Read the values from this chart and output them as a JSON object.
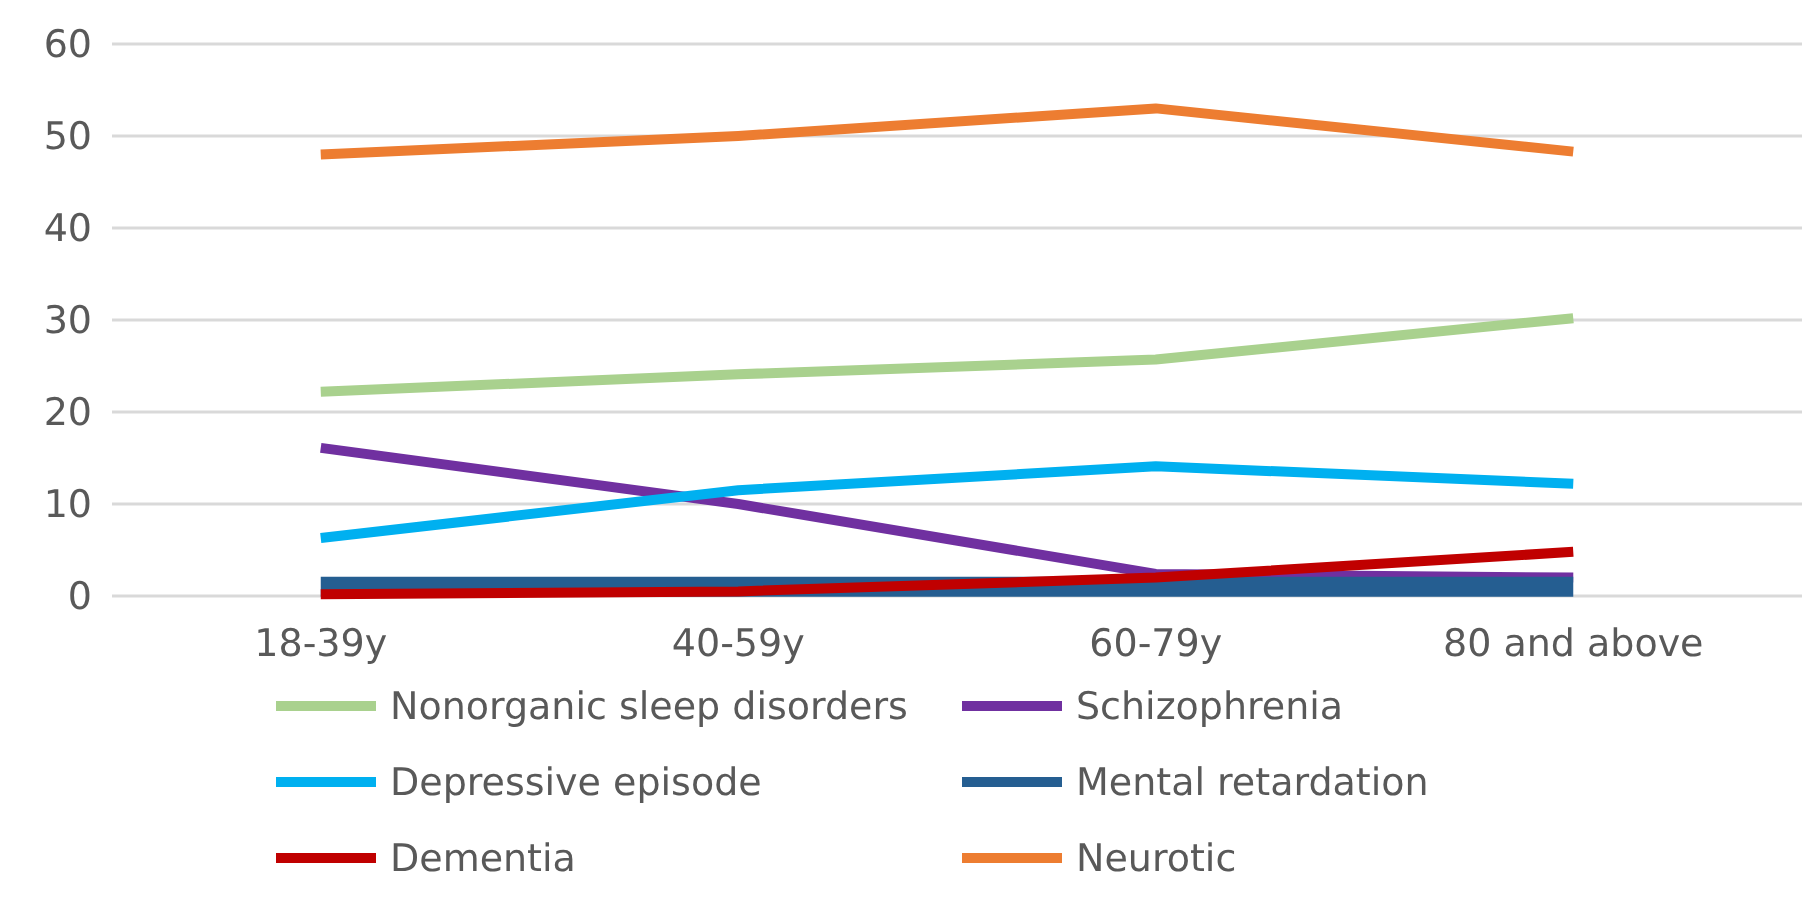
{
  "chart_data": {
    "type": "line",
    "categories": [
      "18-39y",
      "40-59y",
      "60-79y",
      "80 and above"
    ],
    "series": [
      {
        "name": "Nonorganic sleep disorders",
        "color": "#a9d18e",
        "values": [
          22.2,
          24.1,
          25.7,
          30.2
        ]
      },
      {
        "name": "Schizophrenia",
        "color": "#7030a0",
        "values": [
          16.1,
          10,
          2.4,
          2.0
        ]
      },
      {
        "name": "Depressive episode",
        "color": "#00b0f0",
        "values": [
          6.3,
          11.5,
          14.1,
          12.2
        ]
      },
      {
        "name": "Mental retardation",
        "color": "#255e91",
        "values": [
          1,
          1,
          1,
          1
        ]
      },
      {
        "name": "Dementia",
        "color": "#c00000",
        "values": [
          0.2,
          0.5,
          2,
          4.8
        ]
      },
      {
        "name": "Neurotic",
        "color": "#ed7d31",
        "values": [
          48,
          50,
          53,
          48.3
        ]
      }
    ],
    "ylim": [
      0,
      60
    ],
    "yticks": [
      0,
      10,
      20,
      30,
      40,
      50,
      60
    ],
    "grid": "y",
    "legend": "bottom",
    "marker": "none",
    "line_style": "solid"
  }
}
